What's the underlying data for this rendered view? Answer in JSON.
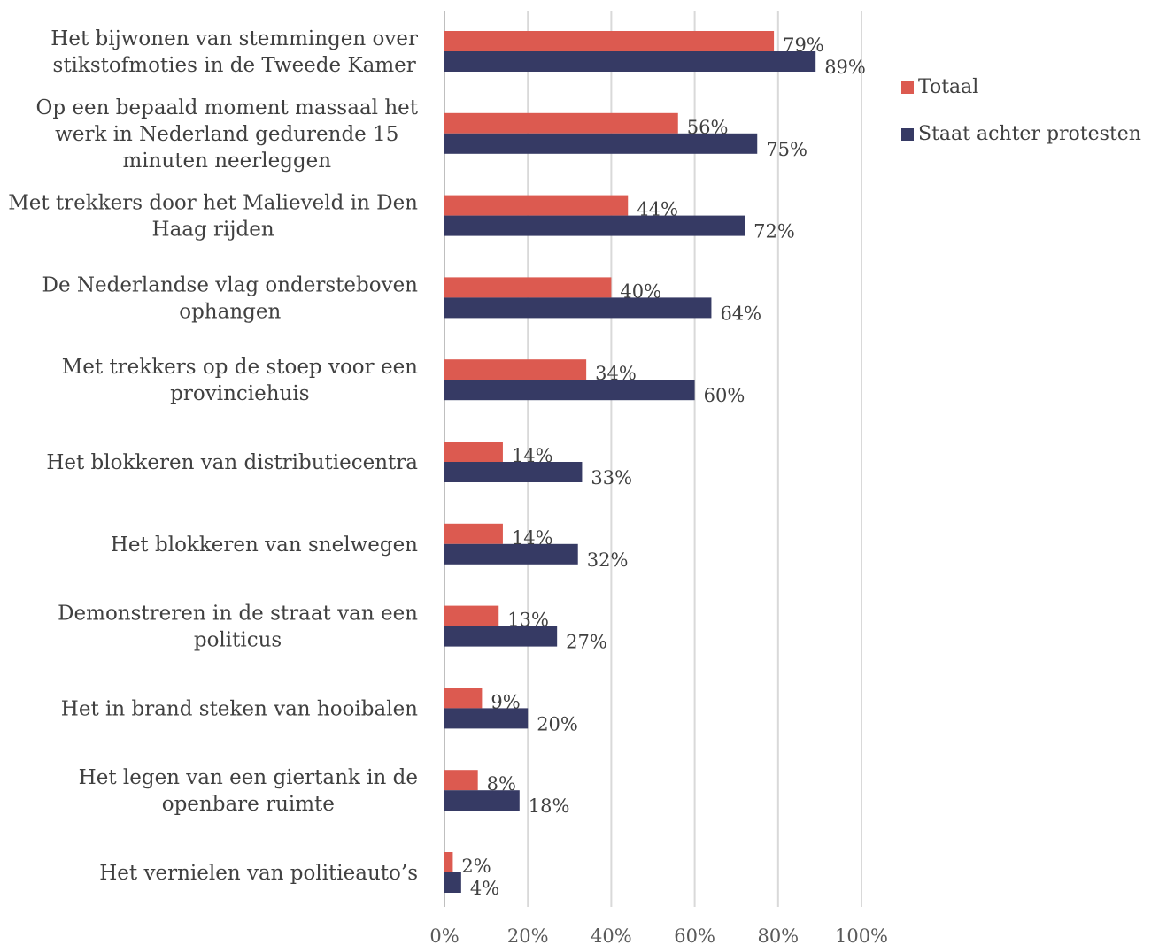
{
  "chart_data": {
    "type": "bar",
    "orientation": "horizontal",
    "title": "",
    "xlabel": "",
    "ylabel": "",
    "xlim": [
      0,
      1
    ],
    "x_ticks": [
      "0%",
      "20%",
      "40%",
      "60%",
      "80%",
      "100%"
    ],
    "grid": true,
    "legend_position": "right",
    "categories": [
      [
        "Het bijwonen van stemmingen over",
        "stikstofmoties in de Tweede Kamer"
      ],
      [
        "Op een bepaald moment massaal het",
        "werk in Nederland gedurende 15",
        "minuten neerleggen"
      ],
      [
        "Met trekkers door het Malieveld in Den",
        "Haag rijden"
      ],
      [
        "De Nederlandse vlag ondersteboven",
        "ophangen"
      ],
      [
        "Met trekkers op de stoep voor een",
        "provinciehuis"
      ],
      [
        "Het blokkeren van distributiecentra"
      ],
      [
        "Het blokkeren van snelwegen"
      ],
      [
        "Demonstreren in de straat van een",
        "politicus"
      ],
      [
        "Het in brand steken van hooibalen"
      ],
      [
        "Het legen van een giertank in de",
        "openbare ruimte"
      ],
      [
        "Het vernielen van politieauto’s"
      ]
    ],
    "series": [
      {
        "name": "Totaal",
        "color": "#dc5a50",
        "values": [
          0.79,
          0.56,
          0.44,
          0.4,
          0.34,
          0.14,
          0.14,
          0.13,
          0.09,
          0.08,
          0.02
        ],
        "labels": [
          "79%",
          "56%",
          "44%",
          "40%",
          "34%",
          "14%",
          "14%",
          "13%",
          "9%",
          "8%",
          "2%"
        ]
      },
      {
        "name": "Staat achter protesten",
        "color": "#363a64",
        "values": [
          0.89,
          0.75,
          0.72,
          0.64,
          0.6,
          0.33,
          0.32,
          0.27,
          0.2,
          0.18,
          0.04
        ],
        "labels": [
          "89%",
          "75%",
          "72%",
          "64%",
          "60%",
          "33%",
          "32%",
          "27%",
          "20%",
          "18%",
          "4%"
        ]
      }
    ]
  }
}
